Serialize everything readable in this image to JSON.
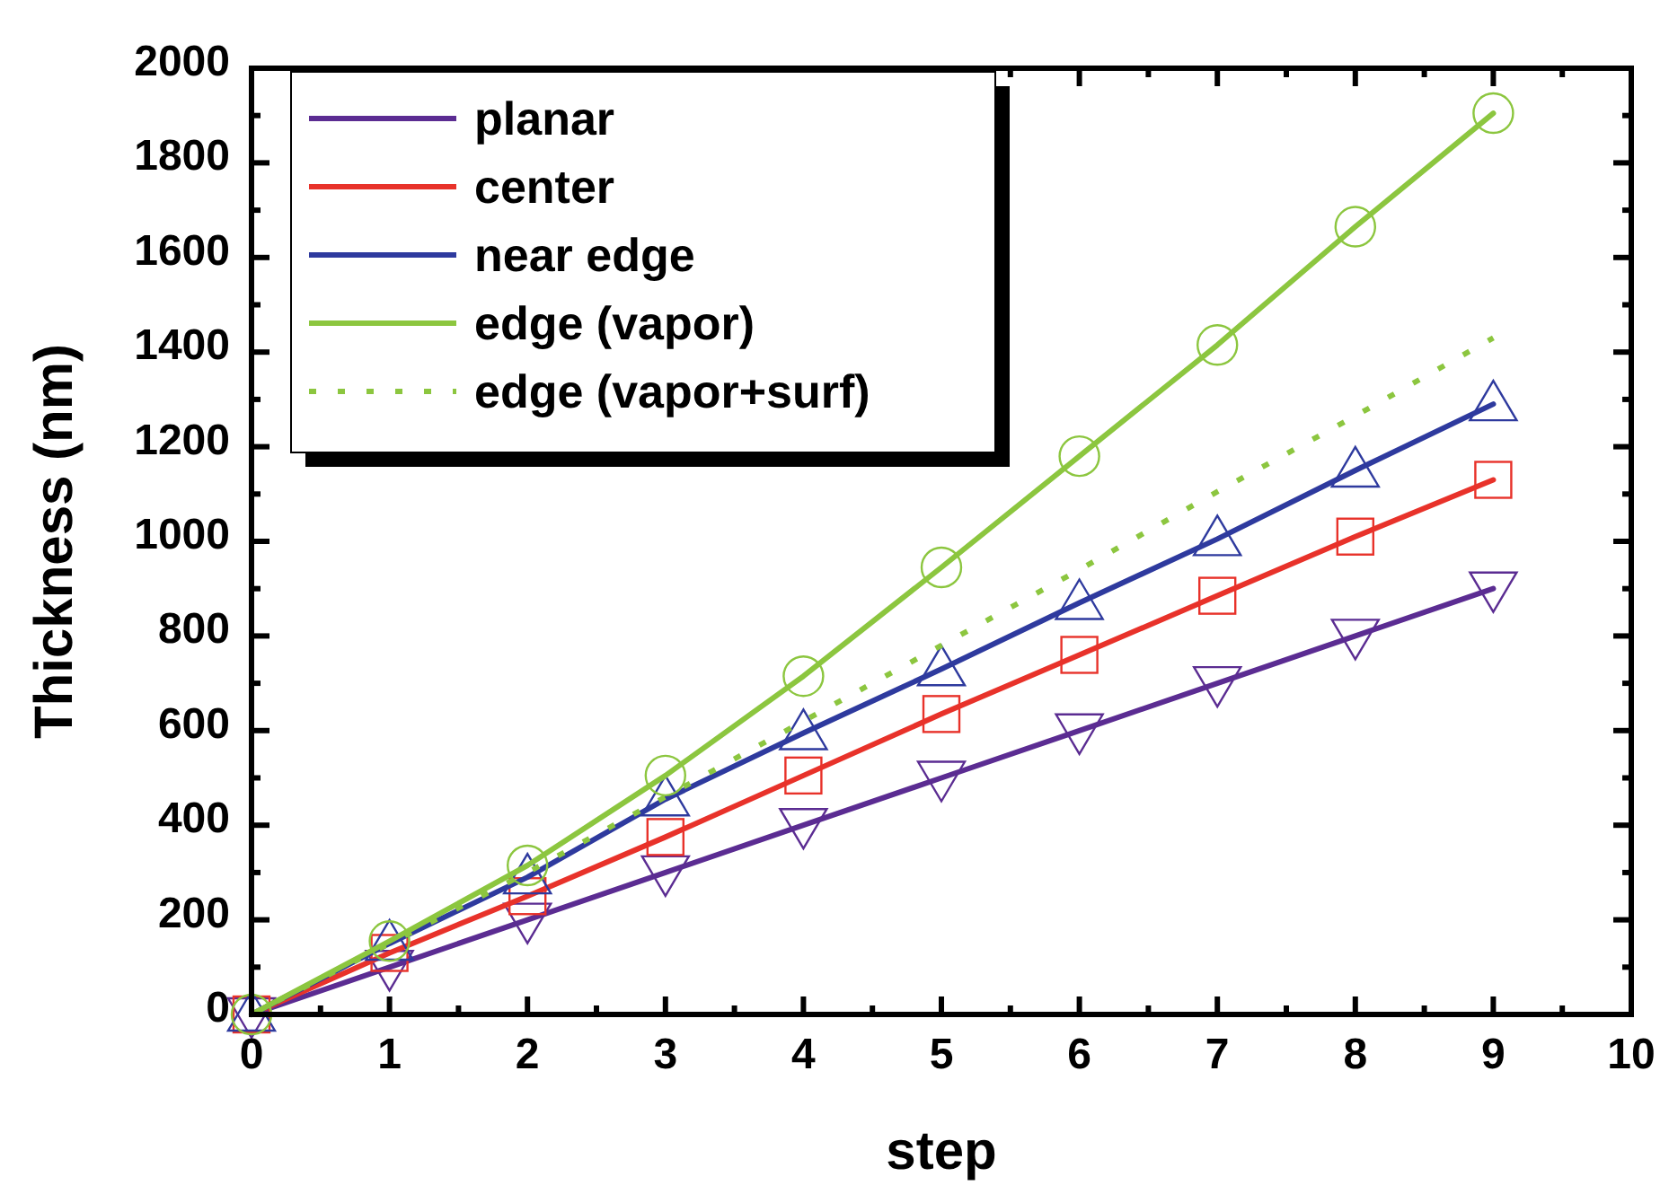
{
  "chart_data": {
    "type": "line",
    "xlabel": "step",
    "ylabel": "Thickness (nm)",
    "x": [
      0,
      1,
      2,
      3,
      4,
      5,
      6,
      7,
      8,
      9
    ],
    "xlim": [
      0,
      10
    ],
    "xticks": [
      0,
      1,
      2,
      3,
      4,
      5,
      6,
      7,
      8,
      9,
      10
    ],
    "ylim": [
      0,
      2000
    ],
    "yticks": [
      0,
      200,
      400,
      600,
      800,
      1000,
      1200,
      1400,
      1600,
      1800,
      2000
    ],
    "grid": false,
    "legend": "top left",
    "series": [
      {
        "name": "planar",
        "color": "#5b2c92",
        "marker": "triangle-down",
        "line_style": "solid",
        "values": [
          0,
          100,
          200,
          300,
          400,
          500,
          600,
          700,
          800,
          900
        ]
      },
      {
        "name": "center",
        "color": "#e8322a",
        "marker": "square",
        "line_style": "solid",
        "values": [
          0,
          130,
          250,
          375,
          505,
          635,
          760,
          885,
          1010,
          1130
        ]
      },
      {
        "name": "near edge",
        "color": "#2e3a9e",
        "marker": "triangle",
        "line_style": "solid",
        "values": [
          0,
          150,
          290,
          455,
          595,
          730,
          870,
          1005,
          1150,
          1290
        ]
      },
      {
        "name": "edge (vapor)",
        "color": "#8cc63f",
        "marker": "circle",
        "line_style": "solid",
        "values": [
          0,
          155,
          315,
          505,
          715,
          945,
          1180,
          1415,
          1665,
          1905
        ]
      },
      {
        "name": "edge (vapor+surf)",
        "color": "#8cc63f",
        "marker": "none",
        "line_style": "dotted",
        "values": [
          0,
          150,
          300,
          460,
          620,
          780,
          940,
          1105,
          1265,
          1430
        ]
      }
    ]
  }
}
